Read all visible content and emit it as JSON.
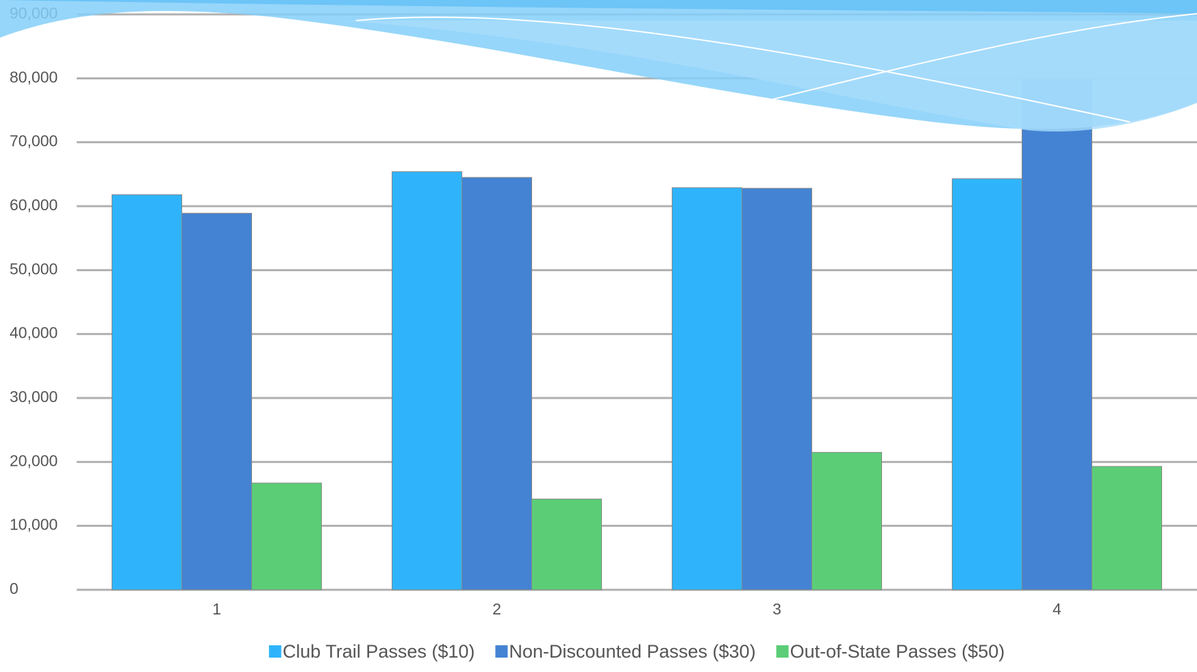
{
  "chart_data": {
    "type": "bar",
    "categories": [
      "1",
      "2",
      "3",
      "4"
    ],
    "series": [
      {
        "name": "Club Trail Passes ($10)",
        "color": "#2fb4fc",
        "values": [
          61800,
          65400,
          62900,
          64300
        ]
      },
      {
        "name": "Non-Discounted Passes ($30)",
        "color": "#4483d3",
        "values": [
          58900,
          64500,
          62800,
          79800
        ]
      },
      {
        "name": "Out-of-State Passes ($50)",
        "color": "#5bcd77",
        "values": [
          16700,
          14200,
          21500,
          19300
        ]
      }
    ],
    "ylim": [
      0,
      90000
    ],
    "yticks": [
      0,
      {
        "value": 10000,
        "label": "10,000"
      },
      {
        "value": 20000,
        "label": "20,000"
      },
      {
        "value": 30000,
        "label": "30,000"
      },
      {
        "value": 40000,
        "label": "40,000"
      },
      {
        "value": 50000,
        "label": "50,000"
      },
      {
        "value": 60000,
        "label": "60,000"
      },
      {
        "value": 70000,
        "label": "70,000"
      },
      {
        "value": 80000,
        "label": "80,000"
      },
      {
        "value": 90000,
        "label": "90,000"
      }
    ],
    "grid": true,
    "legend": "bottom"
  }
}
